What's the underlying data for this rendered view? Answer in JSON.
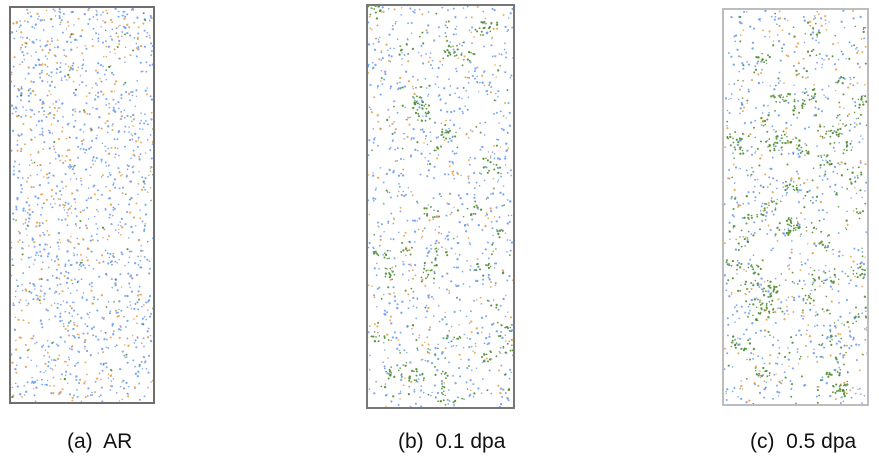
{
  "panels": [
    {
      "caption": "(a)  AR",
      "composition": {
        "blue": 0.68,
        "orange": 0.26,
        "green": 0.06
      }
    },
    {
      "caption": "(b)  0.1 dpa",
      "composition": {
        "blue": 0.52,
        "orange": 0.16,
        "green": 0.32
      }
    },
    {
      "caption": "(c)  0.5 dpa",
      "composition": {
        "blue": 0.38,
        "orange": 0.12,
        "green": 0.5
      }
    }
  ],
  "colors": {
    "blue": "#6f9ef0",
    "orange": "#e7a24b",
    "green": "#4d8b2e",
    "frame": "#6f6f6f"
  }
}
